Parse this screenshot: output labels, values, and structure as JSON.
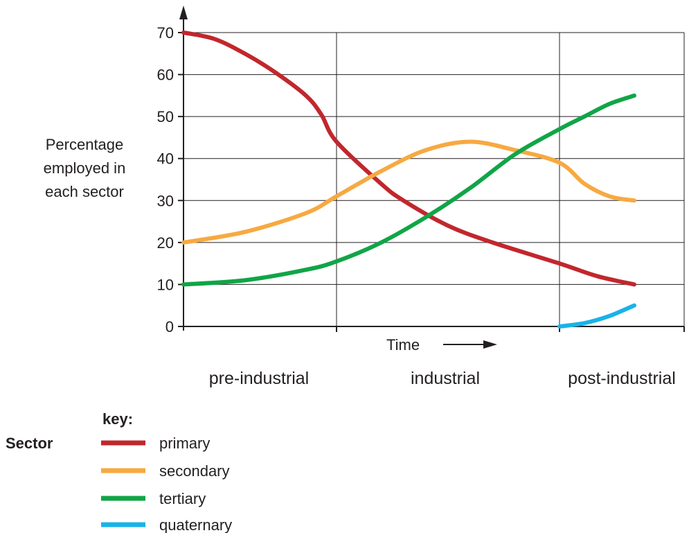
{
  "chart_data": {
    "type": "line",
    "ylabel_lines": [
      "Percentage",
      "employed in",
      "each sector"
    ],
    "xlabel": "Time",
    "ylim": [
      0,
      70
    ],
    "y_ticks": [
      0,
      10,
      20,
      30,
      40,
      50,
      60,
      70
    ],
    "grid": true,
    "x_sections": [
      "pre-industrial",
      "industrial",
      "post-industrial"
    ],
    "series": [
      {
        "name": "primary",
        "color": "#c1272d",
        "values": [
          [
            0,
            70
          ],
          [
            0.2,
            68.5
          ],
          [
            0.4,
            65
          ],
          [
            0.6,
            60.5
          ],
          [
            0.8,
            55
          ],
          [
            0.9,
            50.5
          ],
          [
            1.0,
            44
          ],
          [
            1.2,
            34
          ],
          [
            1.3,
            30
          ],
          [
            1.5,
            24
          ],
          [
            1.7,
            20
          ],
          [
            2.0,
            15
          ],
          [
            2.3,
            12
          ],
          [
            2.6,
            10
          ]
        ]
      },
      {
        "name": "secondary",
        "color": "#f7a941",
        "values": [
          [
            0,
            20
          ],
          [
            0.4,
            22.5
          ],
          [
            0.8,
            27
          ],
          [
            1.0,
            31
          ],
          [
            1.2,
            37
          ],
          [
            1.4,
            42
          ],
          [
            1.6,
            44
          ],
          [
            1.8,
            42
          ],
          [
            2.0,
            39
          ],
          [
            2.2,
            34
          ],
          [
            2.4,
            31
          ],
          [
            2.6,
            30
          ]
        ]
      },
      {
        "name": "tertiary",
        "color": "#10a547",
        "values": [
          [
            0,
            10
          ],
          [
            0.4,
            11
          ],
          [
            0.8,
            13.5
          ],
          [
            1.0,
            15.5
          ],
          [
            1.2,
            20
          ],
          [
            1.4,
            26
          ],
          [
            1.6,
            33
          ],
          [
            1.8,
            41
          ],
          [
            2.0,
            47
          ],
          [
            2.2,
            50
          ],
          [
            2.4,
            53
          ],
          [
            2.6,
            55
          ]
        ]
      },
      {
        "name": "quaternary",
        "color": "#1ab2e8",
        "values": [
          [
            2.0,
            0
          ],
          [
            2.2,
            0.8
          ],
          [
            2.4,
            2.5
          ],
          [
            2.6,
            5
          ]
        ]
      }
    ]
  },
  "key": {
    "title": "key:",
    "group_label": "Sector",
    "entries": [
      {
        "label": "primary",
        "color": "#c1272d"
      },
      {
        "label": "secondary",
        "color": "#f7a941"
      },
      {
        "label": "tertiary",
        "color": "#10a547"
      },
      {
        "label": "quaternary",
        "color": "#1ab2e8"
      }
    ]
  }
}
